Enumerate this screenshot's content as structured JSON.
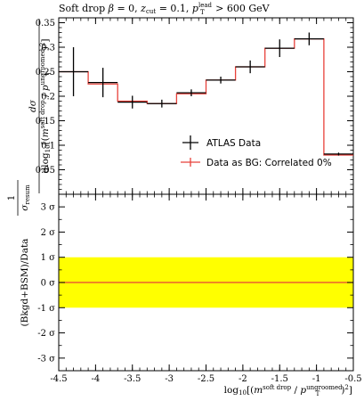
{
  "title": "Soft drop β = 0, z_cut = 0.1, p_T^lead > 600 GeV",
  "colors": {
    "data": "#000000",
    "mc": "#e8413a",
    "band": "#ffff00",
    "zero_line": "#e8413a"
  },
  "chart_data": [
    {
      "type": "line",
      "panel": "main",
      "title": "Soft drop β = 0, z_cut = 0.1, p_T^lead > 600 GeV",
      "ylabel": "1/σ_resum dσ/dlog10[(m^soft drop / p_T^ungroomed)^2]",
      "xlim": [
        -4.5,
        -0.5
      ],
      "ylim": [
        0,
        0.36
      ],
      "yticks": [
        0.05,
        0.1,
        0.15,
        0.2,
        0.25,
        0.3,
        0.35
      ],
      "ytick_labels": [
        "0.05",
        "0.1",
        "0.15",
        "0.2",
        "0.25",
        "0.3",
        "0.35"
      ],
      "grid": false,
      "legend_position": "bottom-right",
      "series": [
        {
          "name": "ATLAS Data",
          "kind": "points-with-errors",
          "x": [
            -4.3,
            -3.9,
            -3.5,
            -3.1,
            -2.7,
            -2.3,
            -1.9,
            -1.5,
            -1.1,
            -0.7
          ],
          "y": [
            0.25,
            0.228,
            0.188,
            0.185,
            0.207,
            0.233,
            0.26,
            0.298,
            0.317,
            0.082
          ],
          "yerr": [
            0.05,
            0.03,
            0.013,
            0.008,
            0.007,
            0.007,
            0.013,
            0.018,
            0.013,
            0.003
          ]
        },
        {
          "name": "Data as BG: Correlated 0%",
          "kind": "step-histogram",
          "bin_edges": [
            -4.5,
            -4.1,
            -3.7,
            -3.3,
            -2.9,
            -2.5,
            -2.1,
            -1.7,
            -1.3,
            -0.9,
            -0.5
          ],
          "values": [
            0.25,
            0.225,
            0.19,
            0.185,
            0.205,
            0.233,
            0.26,
            0.298,
            0.317,
            0.08
          ]
        }
      ]
    },
    {
      "type": "line",
      "panel": "ratio",
      "xlabel": "log10[(m^soft drop / p_T^ungroomed)^2]",
      "ylabel": "(Bkgd+BSM)/Data",
      "xlim": [
        -4.5,
        -0.5
      ],
      "ylim": [
        -3.5,
        3.5
      ],
      "xticks": [
        -4.5,
        -4,
        -3.5,
        -3,
        -2.5,
        -2,
        -1.5,
        -1,
        -0.5
      ],
      "xtick_labels": [
        "-4.5",
        "-4",
        "-3.5",
        "-3",
        "-2.5",
        "-2",
        "-1.5",
        "-1",
        "-0.5"
      ],
      "yticks": [
        -3,
        -2,
        -1,
        0,
        1,
        2,
        3
      ],
      "ytick_labels": [
        "-3 σ",
        "-2 σ",
        "-1 σ",
        "0 σ",
        "1 σ",
        "2 σ",
        "3 σ"
      ],
      "band": {
        "low": -1,
        "high": 1
      },
      "series": [
        {
          "name": "Data as BG: Correlated 0%",
          "x": [
            -4.5,
            -0.5
          ],
          "y": [
            0,
            0
          ]
        }
      ]
    }
  ]
}
